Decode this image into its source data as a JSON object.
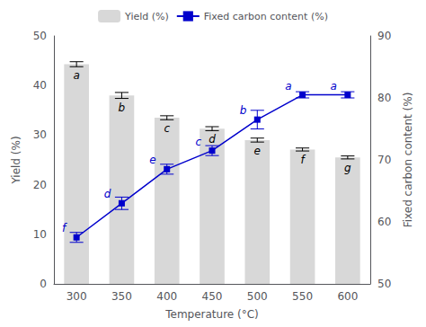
{
  "chart_data": {
    "type": "bar",
    "xlabel": "Temperature (°C)",
    "ylabel": "Yield (%)",
    "y2label": "Fixed carbon content (%)",
    "categories": [
      "300",
      "350",
      "400",
      "450",
      "500",
      "550",
      "600"
    ],
    "series": [
      {
        "name": "Yield (%)",
        "type": "bar",
        "color": "#d8d8d8",
        "values": [
          44.3,
          38.0,
          33.5,
          31.3,
          29.0,
          27.1,
          25.5
        ],
        "errors": [
          0.5,
          0.6,
          0.4,
          0.4,
          0.4,
          0.3,
          0.3
        ],
        "labels": [
          "a",
          "b",
          "c",
          "d",
          "e",
          "f",
          "g"
        ]
      },
      {
        "name": "Fixed carbon content (%)",
        "type": "line",
        "axis": "y2",
        "color": "#0000cc",
        "marker": "square",
        "values": [
          57.5,
          63.0,
          68.5,
          71.5,
          76.5,
          80.5,
          80.5
        ],
        "errors": [
          0.8,
          1.0,
          0.8,
          0.8,
          1.5,
          0.5,
          0.5
        ],
        "labels": [
          "f",
          "d",
          "e",
          "c",
          "b",
          "a",
          "a"
        ]
      }
    ],
    "ylim": [
      0,
      50
    ],
    "yticks": [
      0,
      10,
      20,
      30,
      40,
      50
    ],
    "y2lim": [
      50,
      90
    ],
    "y2ticks": [
      50,
      60,
      70,
      80,
      90
    ],
    "grid": false,
    "legend": "upper center"
  }
}
